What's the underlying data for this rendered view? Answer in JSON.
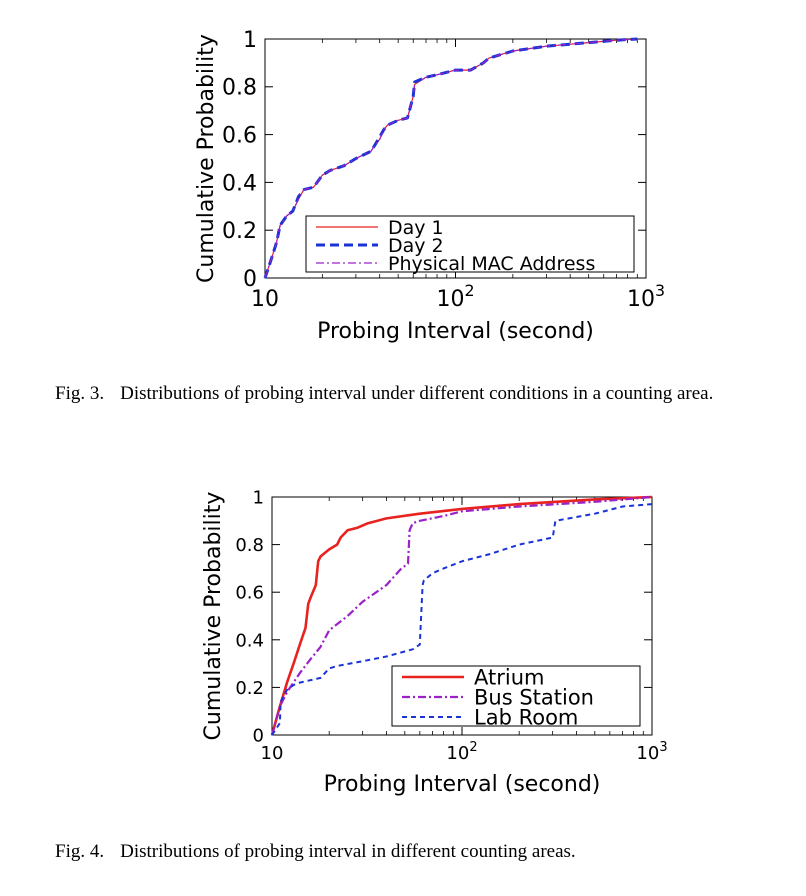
{
  "figures": [
    {
      "label": "Fig. 3.",
      "caption": "Distributions of probing interval under different conditions in a counting area.",
      "chart_data": {
        "type": "line",
        "xscale": "log",
        "xlim": [
          10,
          1000
        ],
        "ylim": [
          0,
          1
        ],
        "xlabel": "Probing Interval (second)",
        "ylabel": "Cumulative Probability",
        "xticks": [
          "10",
          "10^2",
          "10^3"
        ],
        "yticks": [
          "0",
          "0.2",
          "0.4",
          "0.6",
          "0.8",
          "1"
        ],
        "legend_position": "bottom-right",
        "series": [
          {
            "name": "Day 1",
            "color": "#e8231f",
            "style": "solid",
            "x": [
              10,
              10.5,
              11,
              11.5,
              12,
              13,
              14,
              15,
              16,
              18,
              20,
              22,
              26,
              30,
              36,
              38,
              40,
              42,
              44,
              50,
              56,
              60,
              61,
              70,
              80,
              100,
              120,
              140,
              150,
              200,
              300,
              500,
              700,
              900
            ],
            "y": [
              0,
              0.05,
              0.1,
              0.15,
              0.22,
              0.26,
              0.28,
              0.33,
              0.37,
              0.38,
              0.43,
              0.45,
              0.47,
              0.5,
              0.53,
              0.56,
              0.58,
              0.62,
              0.64,
              0.66,
              0.67,
              0.76,
              0.81,
              0.84,
              0.85,
              0.87,
              0.87,
              0.9,
              0.92,
              0.95,
              0.97,
              0.985,
              0.995,
              1.0
            ]
          },
          {
            "name": "Day 2",
            "color": "#1a33d6",
            "style": "dashed",
            "x": [
              10,
              10.5,
              11,
              11.5,
              12,
              13,
              14,
              15,
              16,
              18,
              20,
              22,
              26,
              30,
              36,
              38,
              40,
              42,
              44,
              50,
              56,
              60,
              61,
              70,
              80,
              100,
              120,
              140,
              150,
              200,
              300,
              500,
              700,
              900
            ],
            "y": [
              0,
              0.05,
              0.1,
              0.15,
              0.22,
              0.26,
              0.28,
              0.34,
              0.37,
              0.38,
              0.43,
              0.45,
              0.47,
              0.5,
              0.53,
              0.56,
              0.59,
              0.62,
              0.64,
              0.66,
              0.67,
              0.76,
              0.82,
              0.84,
              0.85,
              0.87,
              0.87,
              0.9,
              0.92,
              0.95,
              0.97,
              0.985,
              0.995,
              1.0
            ]
          },
          {
            "name": "Physical MAC Address",
            "color": "#9b21c9",
            "style": "dashdot",
            "x": [
              10,
              10.5,
              11,
              11.5,
              12,
              13,
              14,
              15,
              16,
              18,
              20,
              22,
              26,
              30,
              36,
              38,
              40,
              42,
              44,
              50,
              56,
              60,
              61,
              70,
              80,
              100,
              120,
              140,
              150,
              200,
              300,
              500,
              700,
              900
            ],
            "y": [
              0,
              0.05,
              0.1,
              0.15,
              0.22,
              0.26,
              0.28,
              0.33,
              0.37,
              0.38,
              0.43,
              0.45,
              0.47,
              0.5,
              0.53,
              0.56,
              0.58,
              0.62,
              0.64,
              0.66,
              0.67,
              0.76,
              0.81,
              0.84,
              0.85,
              0.87,
              0.87,
              0.9,
              0.92,
              0.95,
              0.97,
              0.985,
              0.995,
              1.0
            ]
          }
        ]
      }
    },
    {
      "label": "Fig. 4.",
      "caption": "Distributions of probing interval in different counting areas.",
      "chart_data": {
        "type": "line",
        "xscale": "log",
        "xlim": [
          10,
          1000
        ],
        "ylim": [
          0,
          1
        ],
        "xlabel": "Probing Interval (second)",
        "ylabel": "Cumulative Probability",
        "xticks": [
          "10",
          "10^2",
          "10^3"
        ],
        "yticks": [
          "0",
          "0.2",
          "0.4",
          "0.6",
          "0.8",
          "1"
        ],
        "legend_position": "bottom-right",
        "series": [
          {
            "name": "Atrium",
            "color": "#e8231f",
            "style": "solid",
            "x": [
              10,
              11,
              12,
              13,
              14,
              15,
              15.5,
              16,
              17,
              17.5,
              18,
              20,
              22,
              23,
              25,
              28,
              32,
              40,
              60,
              100,
              200,
              500,
              1000
            ],
            "y": [
              0,
              0.12,
              0.22,
              0.3,
              0.38,
              0.45,
              0.55,
              0.58,
              0.63,
              0.73,
              0.75,
              0.78,
              0.8,
              0.83,
              0.86,
              0.87,
              0.89,
              0.91,
              0.93,
              0.95,
              0.97,
              0.99,
              1.0
            ]
          },
          {
            "name": "Bus Station",
            "color": "#9b21c9",
            "style": "dashdot",
            "x": [
              10,
              11,
              12,
              14,
              16,
              18,
              20,
              25,
              30,
              40,
              48,
              50,
              52,
              53,
              55,
              60,
              80,
              100,
              200,
              500,
              1000
            ],
            "y": [
              0,
              0.12,
              0.18,
              0.26,
              0.32,
              0.37,
              0.44,
              0.5,
              0.56,
              0.63,
              0.7,
              0.71,
              0.72,
              0.86,
              0.89,
              0.9,
              0.92,
              0.94,
              0.96,
              0.98,
              1.0
            ]
          },
          {
            "name": "Lab Room",
            "color": "#1a33d6",
            "style": "dotted-dash",
            "x": [
              10,
              11,
              11.1,
              12,
              13,
              14,
              18,
              20,
              22,
              30,
              40,
              55,
              60,
              62,
              63,
              70,
              80,
              100,
              140,
              200,
              300,
              310,
              500,
              700,
              1000
            ],
            "y": [
              0,
              0.05,
              0.14,
              0.19,
              0.21,
              0.22,
              0.24,
              0.28,
              0.29,
              0.31,
              0.33,
              0.36,
              0.38,
              0.63,
              0.65,
              0.68,
              0.7,
              0.73,
              0.76,
              0.8,
              0.83,
              0.9,
              0.93,
              0.96,
              0.97
            ]
          }
        ]
      }
    }
  ]
}
